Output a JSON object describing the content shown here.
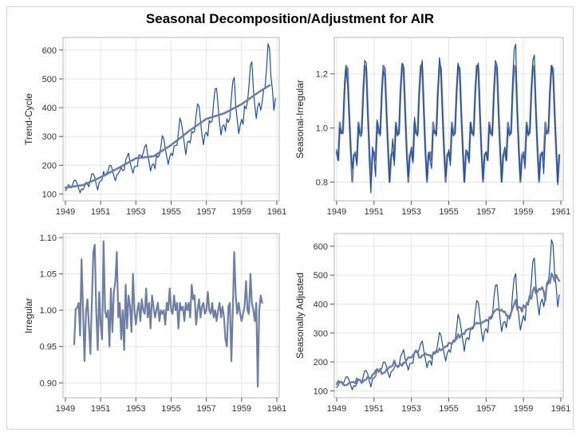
{
  "title": "Seasonal Decomposition/Adjustment  for AIR",
  "colors": {
    "dark": "#1f4e9c",
    "smooth": "#6e7fa3",
    "mid": "#5a78a8",
    "grid": "#e6e6e6",
    "frame": "#b7b7b7"
  },
  "chart_data": [
    {
      "type": "line",
      "ylabel": "Trend-Cycle",
      "xlim": [
        1949,
        1961
      ],
      "ylim": [
        90,
        630
      ],
      "x_ticks": [
        "1949",
        "1951",
        "1953",
        "1955",
        "1957",
        "1959",
        "1961"
      ],
      "y_ticks": [
        "100",
        "200",
        "300",
        "400",
        "500",
        "600"
      ],
      "y_tick_values": [
        100,
        200,
        300,
        400,
        500,
        600
      ],
      "grid": true,
      "series": [
        {
          "kind": "raw",
          "values": [
            112,
            118,
            132,
            129,
            121,
            135,
            148,
            148,
            136,
            119,
            104,
            118,
            115,
            126,
            141,
            135,
            125,
            149,
            170,
            170,
            158,
            133,
            114,
            140,
            145,
            150,
            178,
            163,
            172,
            178,
            199,
            199,
            184,
            162,
            146,
            166,
            171,
            180,
            193,
            181,
            183,
            218,
            230,
            242,
            209,
            191,
            172,
            194,
            196,
            196,
            236,
            235,
            229,
            243,
            264,
            272,
            237,
            211,
            180,
            201,
            204,
            188,
            235,
            227,
            234,
            264,
            302,
            293,
            259,
            229,
            203,
            229,
            242,
            233,
            267,
            269,
            270,
            315,
            364,
            347,
            312,
            274,
            237,
            278,
            284,
            277,
            317,
            313,
            318,
            374,
            413,
            405,
            355,
            306,
            271,
            306,
            315,
            301,
            356,
            348,
            355,
            422,
            465,
            467,
            404,
            347,
            305,
            336,
            340,
            318,
            362,
            348,
            363,
            435,
            491,
            505,
            404,
            359,
            310,
            337,
            360,
            342,
            406,
            396,
            420,
            472,
            548,
            559,
            463,
            407,
            362,
            405,
            417,
            391,
            419,
            461,
            472,
            535,
            622,
            606,
            508,
            461,
            390,
            432
          ]
        },
        {
          "kind": "smooth",
          "points": [
            [
              1949.0,
              122
            ],
            [
              1950.0,
              131
            ],
            [
              1951.0,
              158
            ],
            [
              1952.0,
              190
            ],
            [
              1953.0,
              224
            ],
            [
              1954.0,
              231
            ],
            [
              1955.0,
              270
            ],
            [
              1956.0,
              318
            ],
            [
              1957.0,
              361
            ],
            [
              1958.0,
              380
            ],
            [
              1959.0,
              412
            ],
            [
              1960.0,
              455
            ],
            [
              1960.6,
              478
            ]
          ]
        }
      ]
    },
    {
      "type": "line",
      "ylabel": "Seasonal-Irregular",
      "xlim": [
        1949,
        1961
      ],
      "ylim": [
        0.745,
        1.32
      ],
      "x_ticks": [
        "1949",
        "1951",
        "1953",
        "1955",
        "1957",
        "1959",
        "1961"
      ],
      "y_ticks": [
        "0.8",
        "1.0",
        "1.2"
      ],
      "y_tick_values": [
        0.8,
        1.0,
        1.2
      ],
      "grid": true,
      "series": [
        {
          "kind": "seasonal",
          "values": [
            0.91,
            0.88,
            1.02,
            0.98,
            0.98,
            1.13,
            1.23,
            1.22,
            1.06,
            0.92,
            0.8,
            0.9
          ]
        },
        {
          "kind": "irregular",
          "values": [
            0.92,
            0.88,
            1.0,
            0.98,
            0.99,
            1.17,
            1.22,
            1.16,
            1.04,
            0.93,
            0.85,
            0.9,
            0.9,
            0.86,
            1.01,
            0.97,
            0.97,
            1.1,
            1.25,
            1.24,
            1.05,
            0.87,
            0.76,
            0.93,
            0.9,
            0.82,
            1.03,
            1.0,
            0.97,
            1.14,
            1.21,
            1.19,
            1.07,
            0.93,
            0.8,
            0.89,
            0.96,
            0.86,
            1.01,
            0.97,
            0.98,
            1.15,
            1.24,
            1.23,
            1.05,
            0.89,
            0.82,
            0.9,
            0.93,
            0.87,
            1.04,
            0.98,
            0.97,
            1.12,
            1.22,
            1.25,
            1.07,
            0.9,
            0.81,
            0.91,
            0.88,
            0.85,
            0.99,
            0.99,
            0.97,
            1.13,
            1.26,
            1.22,
            1.04,
            0.92,
            0.82,
            0.88,
            0.92,
            0.86,
            1.0,
            0.97,
            0.98,
            1.14,
            1.24,
            1.2,
            1.06,
            0.93,
            0.8,
            0.92,
            0.91,
            0.87,
            1.02,
            0.98,
            0.97,
            1.15,
            1.22,
            1.24,
            1.05,
            0.9,
            0.81,
            0.9,
            0.91,
            0.88,
            1.01,
            0.98,
            0.97,
            1.13,
            1.25,
            1.23,
            1.06,
            0.92,
            0.8,
            0.9,
            0.93,
            0.88,
            1.0,
            0.97,
            0.99,
            1.17,
            1.29,
            1.31,
            1.06,
            0.92,
            0.81,
            0.88,
            0.9,
            0.85,
            1.01,
            0.97,
            0.99,
            1.11,
            1.25,
            1.27,
            1.05,
            0.93,
            0.81,
            0.9,
            0.91,
            0.83,
            0.97,
            0.99,
            0.99,
            1.14,
            1.23,
            1.2,
            1.04,
            0.94,
            0.79,
            0.9
          ]
        }
      ]
    },
    {
      "type": "line",
      "ylabel": "Irregular",
      "xlim": [
        1949,
        1961
      ],
      "ylim": [
        0.885,
        1.1
      ],
      "x_ticks": [
        "1949",
        "1951",
        "1953",
        "1955",
        "1957",
        "1959",
        "1961"
      ],
      "y_ticks": [
        "0.90",
        "0.95",
        "1.00",
        "1.05",
        "1.10"
      ],
      "y_tick_values": [
        0.9,
        0.95,
        1.0,
        1.05,
        1.1
      ],
      "grid": true,
      "series": [
        {
          "kind": "irregular",
          "start": 1949.5,
          "values": [
            0.953,
            1.002,
            1.003,
            1.01,
            0.965,
            1.07,
            1.0,
            0.93,
            0.997,
            1.015,
            0.98,
            0.94,
            1.01,
            1.08,
            1.09,
            1.0,
            0.945,
            1.025,
            0.98,
            0.96,
            1.095,
            1.0,
            0.99,
            1.0,
            0.95,
            1.03,
            0.97,
            1.025,
            1.04,
            1.08,
            0.99,
            1.01,
            0.96,
            1.0,
            0.945,
            1.035,
            0.975,
            1.02,
            1.005,
            0.97,
            1.05,
            1.0,
            0.98,
            1.0,
            1.01,
            0.985,
            1.015,
            1.0,
            0.995,
            1.03,
            0.99,
            1.01,
            0.975,
            1.02,
            1.005,
            0.99,
            1.0,
            1.01,
            0.985,
            1.0,
            0.995,
            1.0,
            0.98,
            1.01,
            1.0,
            1.03,
            1.0,
            0.995,
            1.02,
            1.0,
            1.01,
            0.975,
            1.01,
            1.0,
            1.005,
            0.985,
            1.01,
            1.0,
            1.01,
            0.99,
            1.035,
            1.015,
            1.02,
            0.98,
            1.0,
            1.015,
            0.99,
            1.005,
            1.01,
            0.995,
            1.0,
            1.025,
            1.0,
            0.995,
            1.01,
            0.99,
            1.0,
            0.985,
            1.0,
            1.01,
            0.99,
            1.005,
            0.99,
            0.96,
            0.95,
            1.005,
            1.01,
            0.93,
            1.0,
            1.08,
            1.02,
            0.995,
            1.01,
            0.995,
            0.985,
            0.995,
            1.005,
            1.04,
            1.0,
            0.995,
            1.05,
            1.01,
            1.0,
            0.985,
            1.01,
            0.895,
            1.0,
            1.02,
            1.01
          ]
        }
      ]
    },
    {
      "type": "line",
      "ylabel": "Seasonally Adjusted",
      "xlim": [
        1949,
        1961
      ],
      "ylim": [
        90,
        630
      ],
      "x_ticks": [
        "1949",
        "1951",
        "1953",
        "1955",
        "1957",
        "1959",
        "1961"
      ],
      "y_ticks": [
        "100",
        "200",
        "300",
        "400",
        "500",
        "600"
      ],
      "y_tick_values": [
        100,
        200,
        300,
        400,
        500,
        600
      ],
      "grid": true,
      "series": [
        {
          "kind": "raw",
          "values": [
            112,
            118,
            132,
            129,
            121,
            135,
            148,
            148,
            136,
            119,
            104,
            118,
            115,
            126,
            141,
            135,
            125,
            149,
            170,
            170,
            158,
            133,
            114,
            140,
            145,
            150,
            178,
            163,
            172,
            178,
            199,
            199,
            184,
            162,
            146,
            166,
            171,
            180,
            193,
            181,
            183,
            218,
            230,
            242,
            209,
            191,
            172,
            194,
            196,
            196,
            236,
            235,
            229,
            243,
            264,
            272,
            237,
            211,
            180,
            201,
            204,
            188,
            235,
            227,
            234,
            264,
            302,
            293,
            259,
            229,
            203,
            229,
            242,
            233,
            267,
            269,
            270,
            315,
            364,
            347,
            312,
            274,
            237,
            278,
            284,
            277,
            317,
            313,
            318,
            374,
            413,
            405,
            355,
            306,
            271,
            306,
            315,
            301,
            356,
            348,
            355,
            422,
            465,
            467,
            404,
            347,
            305,
            336,
            340,
            318,
            362,
            348,
            363,
            435,
            491,
            505,
            404,
            359,
            310,
            337,
            360,
            342,
            406,
            396,
            420,
            472,
            548,
            559,
            463,
            407,
            362,
            405,
            417,
            391,
            419,
            461,
            472,
            535,
            622,
            606,
            508,
            461,
            390,
            432
          ]
        },
        {
          "kind": "adjusted",
          "values": [
            123,
            134,
            129,
            132,
            123,
            119,
            120,
            121,
            128,
            129,
            130,
            131,
            126,
            143,
            138,
            138,
            128,
            132,
            138,
            139,
            149,
            145,
            143,
            156,
            159,
            170,
            175,
            166,
            176,
            158,
            162,
            163,
            174,
            176,
            183,
            184,
            188,
            205,
            189,
            185,
            187,
            193,
            187,
            198,
            197,
            208,
            215,
            216,
            215,
            223,
            231,
            240,
            234,
            215,
            215,
            223,
            224,
            229,
            225,
            223,
            224,
            214,
            230,
            232,
            239,
            234,
            246,
            240,
            244,
            249,
            254,
            254,
            266,
            265,
            262,
            274,
            276,
            279,
            296,
            284,
            294,
            298,
            296,
            309,
            312,
            315,
            311,
            319,
            324,
            331,
            336,
            332,
            335,
            333,
            339,
            340,
            346,
            342,
            349,
            355,
            362,
            373,
            378,
            383,
            381,
            377,
            381,
            373,
            374,
            361,
            355,
            355,
            370,
            385,
            399,
            414,
            381,
            390,
            388,
            374,
            396,
            389,
            398,
            404,
            429,
            418,
            446,
            458,
            437,
            442,
            453,
            450,
            458,
            444,
            411,
            470,
            482,
            473,
            506,
            497,
            479,
            501,
            488,
            480
          ]
        }
      ]
    }
  ]
}
